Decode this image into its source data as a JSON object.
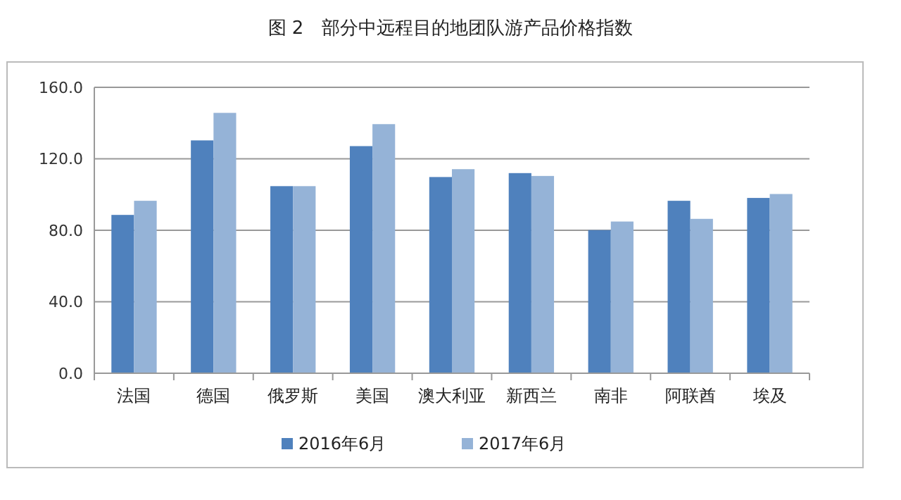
{
  "chart_data": {
    "type": "bar",
    "title": "图 2　部分中远程目的地团队游产品价格指数",
    "categories": [
      "法国",
      "德国",
      "俄罗斯",
      "美国",
      "澳大利亚",
      "新西兰",
      "南非",
      "阿联酋",
      "埃及"
    ],
    "series": [
      {
        "name": "2016年6月",
        "color": "#4f81bd",
        "values": [
          88.6,
          130.3,
          104.7,
          127.1,
          109.8,
          112.0,
          80.1,
          96.5,
          98.1
        ]
      },
      {
        "name": "2017年6月",
        "color": "#95b3d7",
        "values": [
          96.5,
          145.7,
          104.7,
          139.4,
          114.2,
          110.4,
          84.9,
          86.4,
          100.3
        ]
      }
    ],
    "ylim": [
      0,
      160
    ],
    "yticks": [
      {
        "value": 0,
        "label": "0.0"
      },
      {
        "value": 40,
        "label": "40.0"
      },
      {
        "value": 80,
        "label": "80.0"
      },
      {
        "value": 120,
        "label": "120.0"
      },
      {
        "value": 160,
        "label": "160.0"
      }
    ],
    "grid": "y",
    "legend": "bottom"
  }
}
